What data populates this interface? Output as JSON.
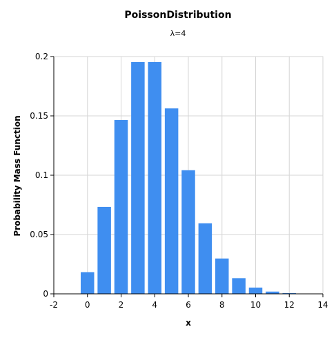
{
  "chart_data": {
    "type": "bar",
    "title": "PoissonDistribution",
    "subtitle": "λ=4",
    "xlabel": "x",
    "ylabel": "Probability Mass Function",
    "xlim": [
      -2,
      14
    ],
    "ylim": [
      0,
      0.2
    ],
    "xticks": [
      "-2",
      "0",
      "2",
      "4",
      "6",
      "8",
      "10",
      "12",
      "14"
    ],
    "yticks": [
      "0",
      "0.05",
      "0.1",
      "0.15",
      "0.2"
    ],
    "grid": true,
    "legend": "none",
    "bar_color": "#3f8ef0",
    "x": [
      0,
      1,
      2,
      3,
      4,
      5,
      6,
      7,
      8,
      9,
      10,
      11,
      12,
      13
    ],
    "values": [
      0.0183,
      0.0733,
      0.1465,
      0.1954,
      0.1954,
      0.1563,
      0.1042,
      0.0595,
      0.0298,
      0.0132,
      0.0053,
      0.0019,
      0.0006,
      0.0002
    ]
  }
}
